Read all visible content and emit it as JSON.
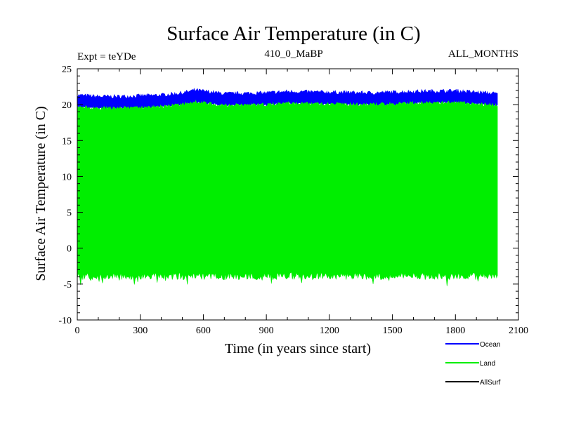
{
  "chart_data": {
    "type": "line",
    "title": "Surface Air Temperature (in C)",
    "subtitle_left": "Expt = teYDe",
    "subtitle_center": "410_0_MaBP",
    "subtitle_right": "ALL_MONTHS",
    "xlabel": "Time (in years since start)",
    "ylabel": "Surface Air Temperature (in C)",
    "xlim": [
      0,
      2100
    ],
    "ylim": [
      -10,
      25
    ],
    "x_ticks": [
      0,
      300,
      600,
      900,
      1200,
      1500,
      1800,
      2100
    ],
    "y_ticks": [
      -10,
      -5,
      0,
      5,
      10,
      15,
      20,
      25
    ],
    "x_tick_labels": [
      "0",
      "300",
      "600",
      "900",
      "1200",
      "1500",
      "1800",
      "2100"
    ],
    "y_tick_labels": [
      "-10",
      "-5",
      "0",
      "5",
      "10",
      "15",
      "20",
      "25"
    ],
    "x_minor_step": 100,
    "y_minor_step": 1,
    "x_range": [
      0,
      2000
    ],
    "series": [
      {
        "name": "Ocean",
        "color": "#0000ff",
        "description": "monthly values oscillating in a narrow band",
        "band_low": 19.8,
        "band_high": 21.5,
        "mean_trend": [
          [
            0,
            20.6
          ],
          [
            100,
            20.4
          ],
          [
            200,
            20.4
          ],
          [
            300,
            20.5
          ],
          [
            400,
            20.6
          ],
          [
            500,
            20.9
          ],
          [
            560,
            21.3
          ],
          [
            700,
            20.8
          ],
          [
            900,
            20.9
          ],
          [
            1000,
            21.1
          ],
          [
            1200,
            21.0
          ],
          [
            1400,
            20.9
          ],
          [
            1600,
            21.1
          ],
          [
            1800,
            21.2
          ],
          [
            2000,
            20.8
          ]
        ]
      },
      {
        "name": "Land",
        "color": "#00ee00",
        "description": "large seasonal cycle filling band",
        "band_low": -4.0,
        "band_high": 20.2,
        "min_extreme": -5.5
      },
      {
        "name": "AllSurf",
        "color": "#000000",
        "description": "hidden behind Land series"
      }
    ],
    "legend": [
      {
        "label": "Ocean",
        "color": "#0000ff"
      },
      {
        "label": "Land",
        "color": "#00ee00"
      },
      {
        "label": "AllSurf",
        "color": "#000000"
      }
    ],
    "legend_position": "bottom-right",
    "grid": false
  }
}
